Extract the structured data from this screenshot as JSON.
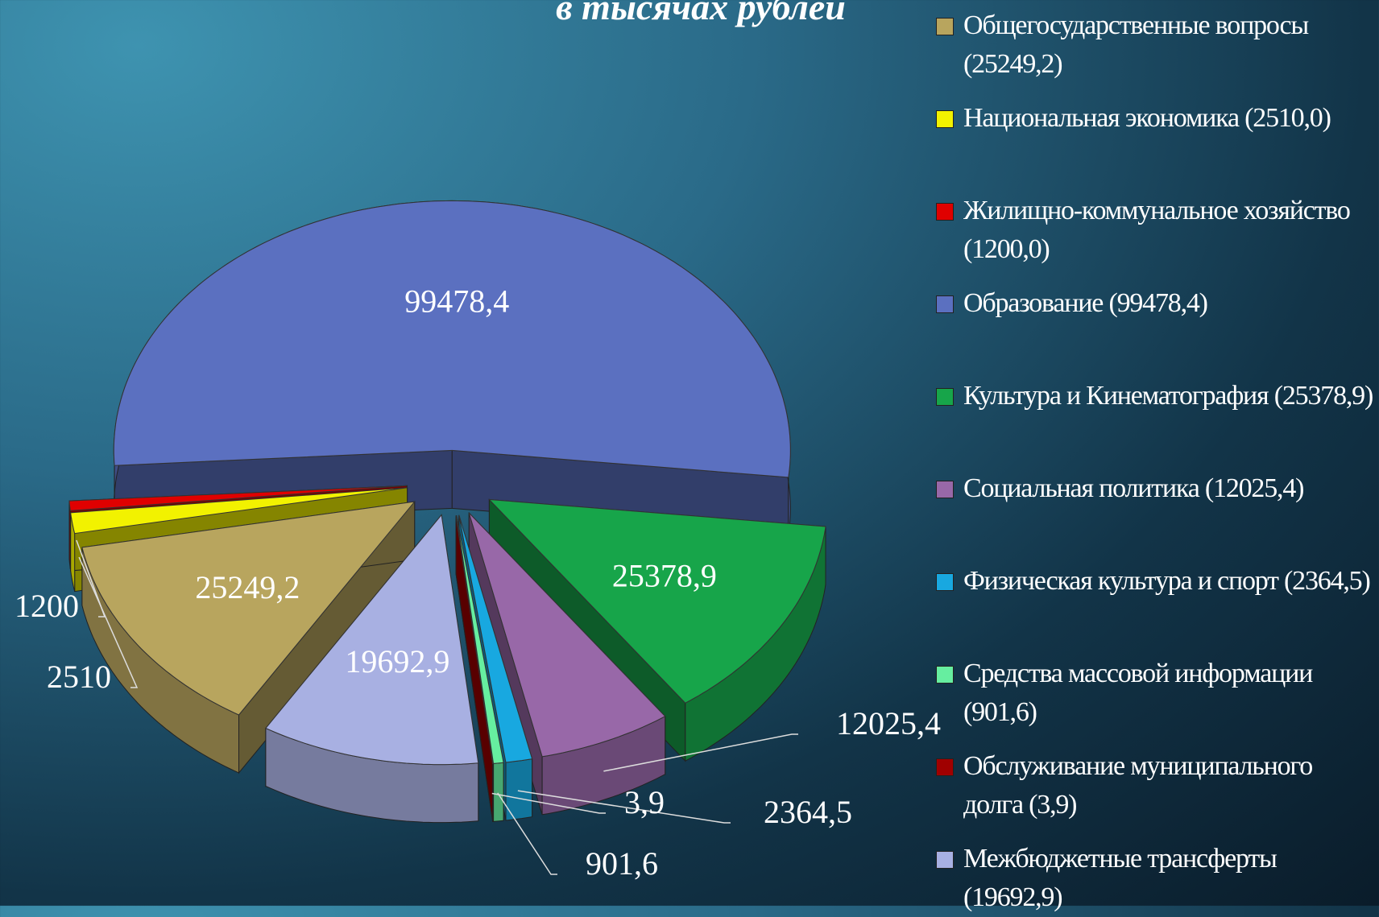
{
  "chart_data": {
    "type": "pie3d",
    "title": "в тысячах рублей",
    "categories": [
      "Общегосударственные вопросы (25249,2)",
      "Национальная экономика (2510,0)",
      "Жилищно-коммунальное хозяйство (1200,0)",
      "Образование (99478,4)",
      "Культура и Кинематография (25378,9)",
      "Социальная политика (12025,4)",
      "Физическая культура и спорт (2364,5)",
      "Средства массовой информации (901,6)",
      "Обслуживание муниципального долга (3,9)",
      "Межбюджетные трансферты (19692,9)"
    ],
    "values": [
      25249.2,
      2510.0,
      1200.0,
      99478.4,
      25378.9,
      12025.4,
      2364.5,
      901.6,
      3.9,
      19692.9
    ],
    "value_labels": [
      "25249,2",
      "2510",
      "1200",
      "99478,4",
      "25378,9",
      "12025,4",
      "2364,5",
      "901,6",
      "3,9",
      "19692,9"
    ],
    "colors": [
      "#b8a55e",
      "#f2f200",
      "#e00000",
      "#5b70c0",
      "#17a54a",
      "#9868a8",
      "#18a8e0",
      "#66eea0",
      "#a00000",
      "#a8b0e2"
    ],
    "legend": "right"
  }
}
